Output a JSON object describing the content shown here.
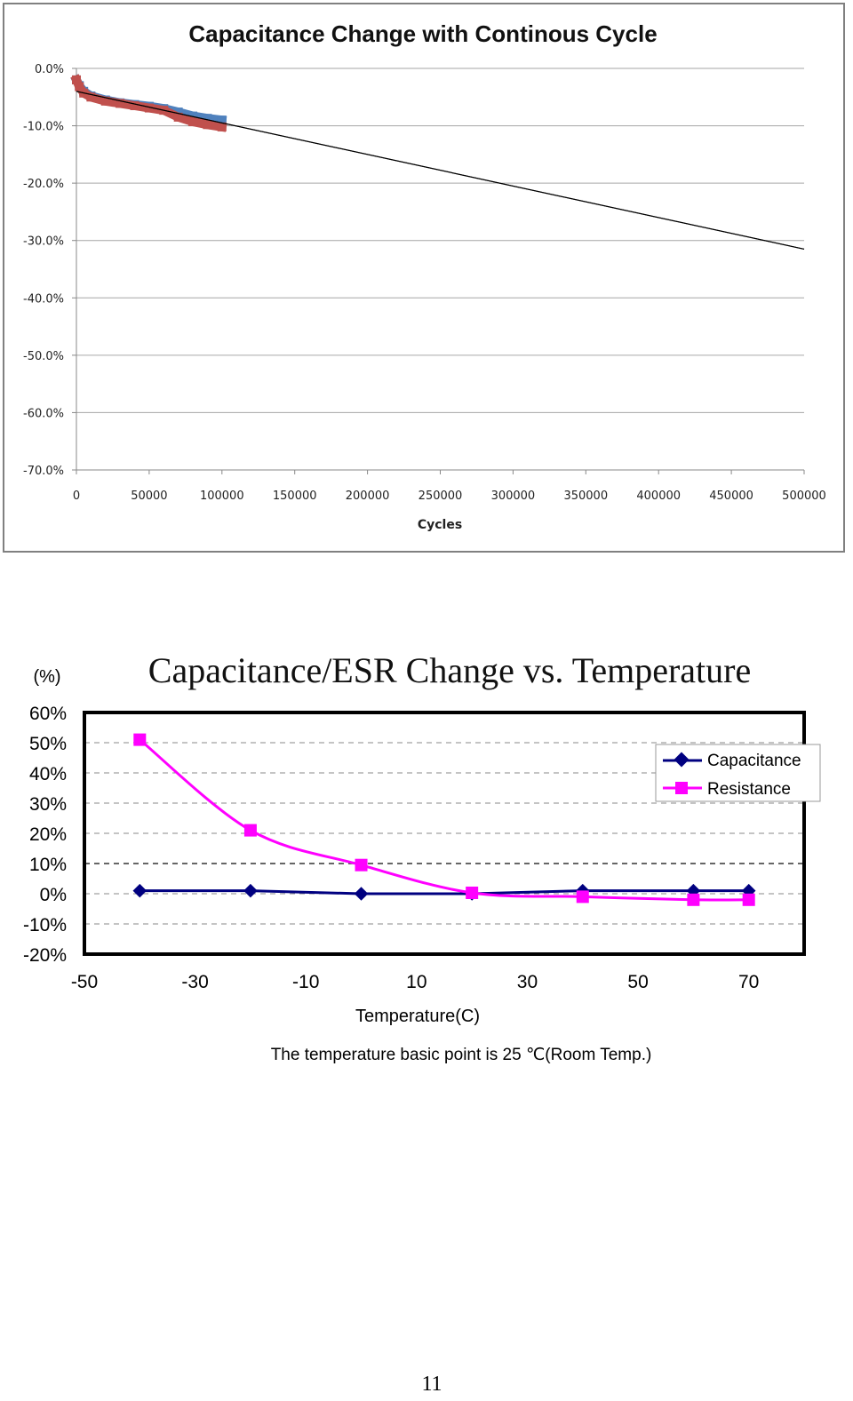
{
  "chart_data": [
    {
      "type": "scatter",
      "title": "Capacitance Change with Continous Cycle",
      "xlabel": "Cycles",
      "ylabel": "",
      "xlim": [
        0,
        500000
      ],
      "ylim": [
        -70,
        0
      ],
      "x_ticks": [
        "0",
        "50000",
        "100000",
        "150000",
        "200000",
        "250000",
        "300000",
        "350000",
        "400000",
        "450000",
        "500000"
      ],
      "y_ticks": [
        "0.0%",
        "-10.0%",
        "-20.0%",
        "-30.0%",
        "-40.0%",
        "-50.0%",
        "-60.0%",
        "-70.0%"
      ],
      "grid": "horizontal",
      "series": [
        {
          "color": "#4f81bd",
          "x": [
            0,
            2000,
            5000,
            10000,
            20000,
            30000,
            40000,
            50000,
            60000,
            70000,
            80000,
            90000,
            100000
          ],
          "y": [
            -2.0,
            -3.0,
            -4.0,
            -4.8,
            -5.5,
            -6.0,
            -6.3,
            -6.6,
            -7.0,
            -7.6,
            -8.3,
            -8.7,
            -9.0
          ]
        },
        {
          "color": "#c0504d",
          "x": [
            0,
            2000,
            5000,
            10000,
            20000,
            30000,
            40000,
            50000,
            60000,
            70000,
            80000,
            90000,
            100000
          ],
          "y": [
            -2.0,
            -3.2,
            -4.3,
            -5.0,
            -5.7,
            -6.1,
            -6.5,
            -6.9,
            -7.3,
            -8.5,
            -9.3,
            -9.8,
            -10.2
          ]
        },
        {
          "type": "line",
          "color": "#000000",
          "x": [
            0,
            500000
          ],
          "y": [
            -4.0,
            -31.5
          ]
        }
      ]
    },
    {
      "type": "line",
      "title": "Capacitance/ESR Change vs. Temperature",
      "unit_label": "(%)",
      "xlabel": "Temperature(C)",
      "ylabel": "",
      "xlim": [
        -50,
        80
      ],
      "ylim": [
        -20,
        60
      ],
      "x_ticks": [
        "-50",
        "-30",
        "-10",
        "10",
        "30",
        "50",
        "70"
      ],
      "y_ticks": [
        "60%",
        "50%",
        "40%",
        "30%",
        "20%",
        "10%",
        "0%",
        "-10%",
        "-20%"
      ],
      "grid": "horizontal dashed",
      "legend_position": "top-right",
      "series": [
        {
          "name": "Capacitance",
          "color": "#000080",
          "x": [
            -40,
            -20,
            0,
            20,
            40,
            60,
            70
          ],
          "y": [
            1,
            1,
            0,
            0,
            1,
            1,
            1
          ]
        },
        {
          "name": "Resistance",
          "color": "#ff00ff",
          "x": [
            -40,
            -20,
            0,
            20,
            40,
            60,
            70
          ],
          "y": [
            51,
            21,
            9.5,
            0.3,
            -1,
            -2,
            -2
          ]
        }
      ]
    }
  ],
  "footnote": "The temperature basic point is 25 ℃(Room Temp.)",
  "page_number": "11"
}
